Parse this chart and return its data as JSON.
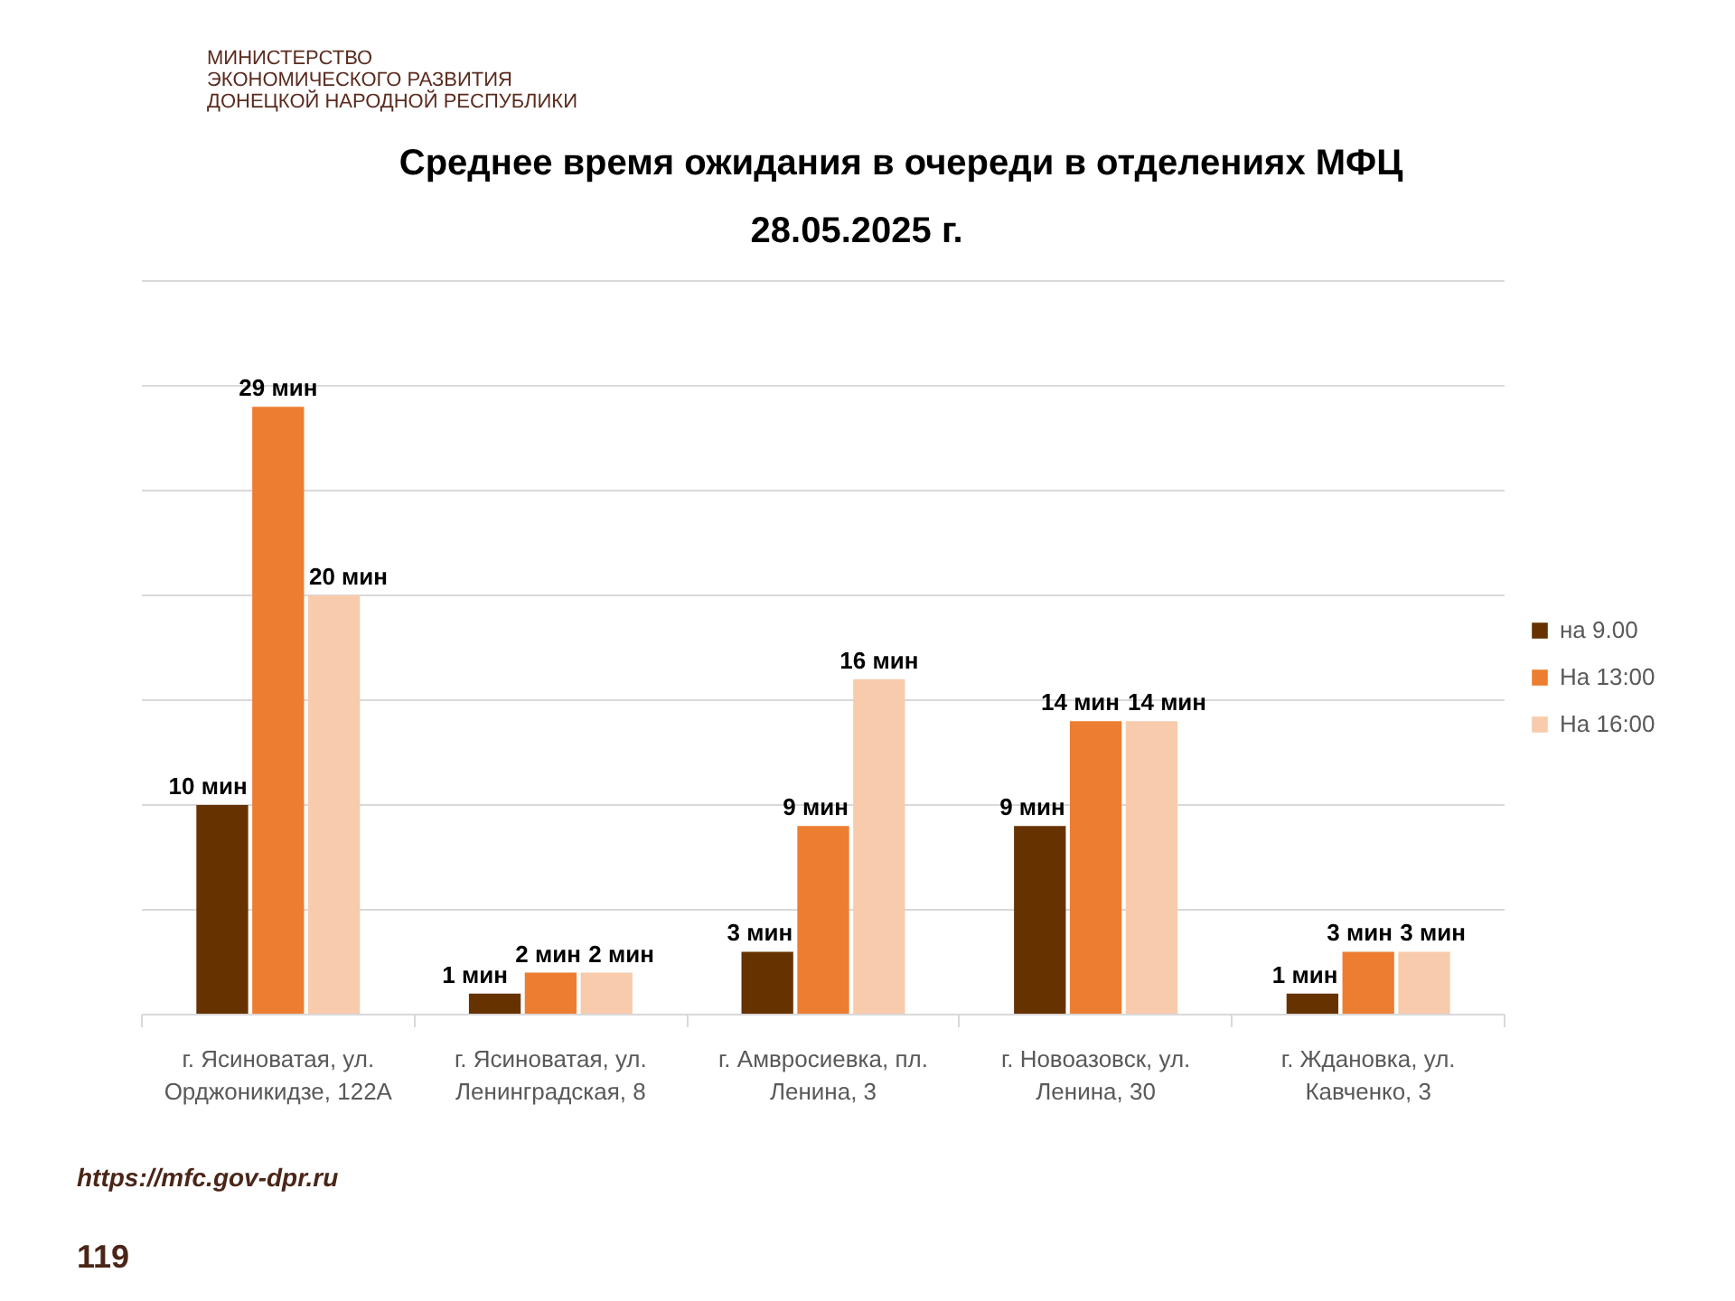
{
  "chart_data": {
    "type": "bar",
    "title": "Среднее время ожидания в очереди в отделениях МФЦ",
    "subtitle": "28.05.2025 г.",
    "categories": [
      "г. Ясиноватая, ул.\nОрджоникидзе, 122А",
      "г. Ясиноватая, ул.\nЛенинградская, 8",
      "г. Амвросиевка, пл.\nЛенина, 3",
      "г. Новоазовск, ул.\nЛенина, 30",
      "г. Ждановка, ул.\nКавченко, 3"
    ],
    "series": [
      {
        "name": "на 9.00",
        "color": "#663300",
        "values": [
          10,
          1,
          3,
          9,
          1
        ],
        "value_labels": [
          "10 мин",
          "1 мин",
          "3 мин",
          "9 мин",
          "1 мин"
        ]
      },
      {
        "name": "На 13:00",
        "color": "#ed7d31",
        "values": [
          29,
          2,
          9,
          14,
          3
        ],
        "value_labels": [
          "29 мин",
          "2 мин",
          "9 мин",
          "14 мин",
          "3 мин"
        ]
      },
      {
        "name": "На 16:00",
        "color": "#f8cbad",
        "values": [
          20,
          2,
          16,
          14,
          3
        ],
        "value_labels": [
          "20 мин",
          "2 мин",
          "16 мин",
          "14 мин",
          "3 мин"
        ]
      }
    ],
    "yticks": [
      0,
      5,
      10,
      15,
      20,
      25,
      30,
      35
    ],
    "grid": "y",
    "legend": "right",
    "tick_labels": "x",
    "annotations": [
      "МИНИСТЕРСТВО\nЭКОНОМИЧЕСКОГО РАЗВИТИЯ\nДОНЕЦКОЙ НАРОДНОЙ РЕСПУБЛИКИ",
      "https://mfc.gov-dpr.ru",
      "119"
    ]
  }
}
